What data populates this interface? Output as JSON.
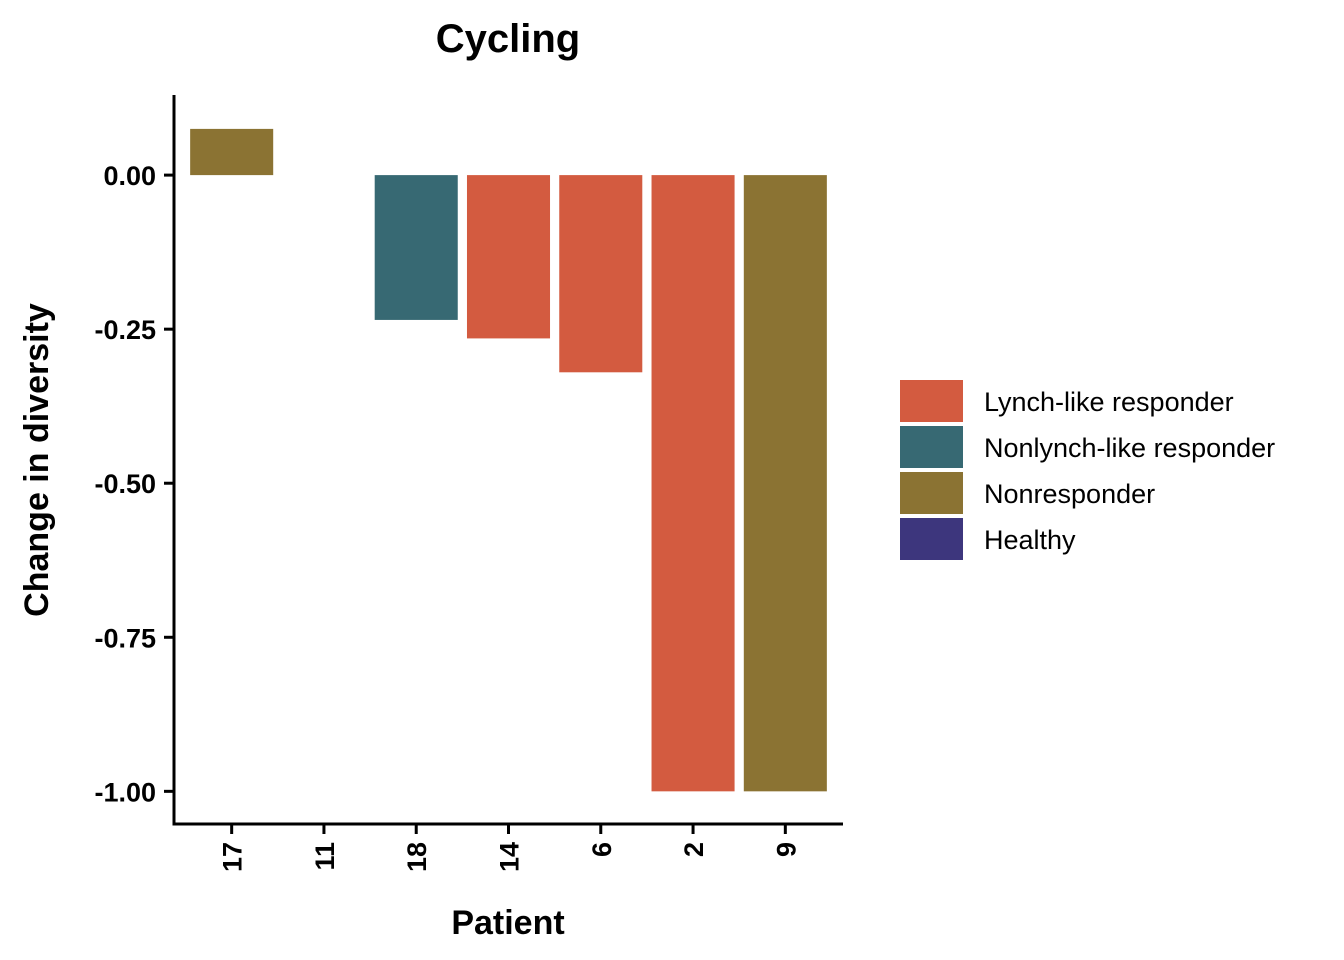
{
  "chart_data": {
    "type": "bar",
    "title": "Cycling",
    "xlabel": "Patient",
    "ylabel": "Change in diversity",
    "categories": [
      "17",
      "11",
      "18",
      "14",
      "6",
      "2",
      "9"
    ],
    "values": [
      0.075,
      null,
      -0.235,
      -0.265,
      -0.32,
      -1.0,
      -1.0
    ],
    "groups": [
      "Nonresponder",
      null,
      "Nonlynch-like responder",
      "Lynch-like responder",
      "Lynch-like responder",
      "Lynch-like responder",
      "Nonresponder"
    ],
    "yticks": [
      0.0,
      -0.25,
      -0.5,
      -0.75,
      -1.0
    ],
    "ytick_labels": [
      "0.00",
      "-0.25",
      "-0.50",
      "-0.75",
      "-1.00"
    ],
    "ylim": [
      -1.053,
      0.13
    ],
    "grid": false,
    "legend_position": "right",
    "legend": [
      {
        "name": "Lynch-like responder",
        "color": "#D35B40"
      },
      {
        "name": "Nonlynch-like responder",
        "color": "#376973"
      },
      {
        "name": "Nonresponder",
        "color": "#8B7333"
      },
      {
        "name": "Healthy",
        "color": "#3D367D"
      }
    ]
  }
}
